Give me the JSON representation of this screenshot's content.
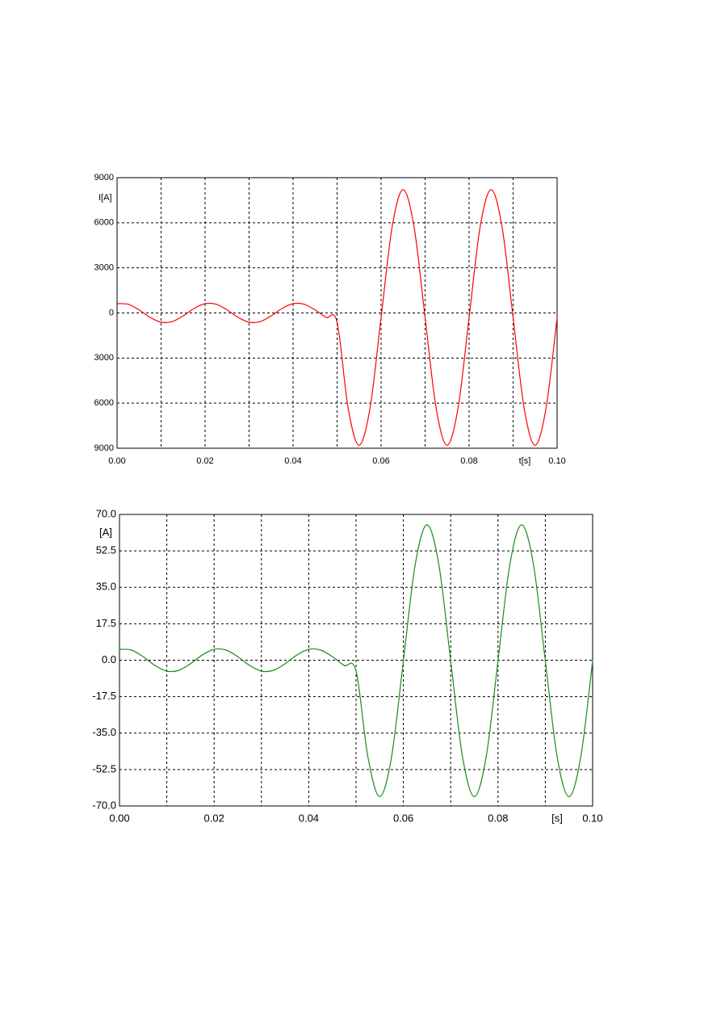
{
  "chart_data": [
    {
      "type": "line",
      "y_label": "I[A]",
      "x_label": "t[s]",
      "grid": true,
      "x": [
        0,
        0.0025,
        0.005,
        0.0075,
        0.01,
        0.0125,
        0.015,
        0.0175,
        0.02,
        0.0225,
        0.025,
        0.0275,
        0.03,
        0.0325,
        0.035,
        0.0375,
        0.04,
        0.0425,
        0.045,
        0.0475,
        0.05,
        0.0525,
        0.055,
        0.0575,
        0.06,
        0.0625,
        0.065,
        0.0675,
        0.07,
        0.0725,
        0.075,
        0.0775,
        0.08,
        0.0825,
        0.085,
        0.0875,
        0.09,
        0.0925,
        0.095,
        0.0975,
        0.1
      ],
      "series": [
        {
          "color": "#ff0000",
          "values": [
            618,
            579,
            201,
            -295,
            -618,
            -579,
            -201,
            295,
            618,
            579,
            201,
            -295,
            -618,
            -579,
            -201,
            295,
            618,
            579,
            201,
            -295,
            -618,
            -6310,
            -8800,
            -6310,
            -300,
            5710,
            8200,
            5710,
            -300,
            -6310,
            -8800,
            -6310,
            -300,
            5710,
            8200,
            5710,
            -300,
            -6310,
            -8800,
            -6310,
            -300
          ]
        }
      ],
      "xlim": [
        0,
        0.1
      ],
      "xticks": [
        {
          "value": 0,
          "label": "0.00"
        },
        {
          "value": 0.02,
          "label": "0.02"
        },
        {
          "value": 0.04,
          "label": "0.04"
        },
        {
          "value": 0.06,
          "label": "0.06"
        },
        {
          "value": 0.08,
          "label": "0.08"
        },
        {
          "value": 0.1,
          "label": "0.10"
        }
      ],
      "xminor": [
        0.01,
        0.03,
        0.05,
        0.07,
        0.09
      ],
      "ylim": [
        -9000,
        9000
      ],
      "yticks": [
        {
          "value": -9000,
          "label": "9000"
        },
        {
          "value": -6000,
          "label": "6000"
        },
        {
          "value": -3000,
          "label": "3000"
        },
        0,
        3000,
        6000,
        9000
      ]
    },
    {
      "type": "line",
      "y_label": "[A]",
      "x_label": "[s]",
      "grid": true,
      "x": [
        0,
        0.0025,
        0.005,
        0.0075,
        0.01,
        0.0125,
        0.015,
        0.0175,
        0.02,
        0.0225,
        0.025,
        0.0275,
        0.03,
        0.0325,
        0.035,
        0.0375,
        0.04,
        0.0425,
        0.045,
        0.0475,
        0.05,
        0.0525,
        0.055,
        0.0575,
        0.06,
        0.0625,
        0.065,
        0.0675,
        0.07,
        0.0725,
        0.075,
        0.0775,
        0.08,
        0.0825,
        0.085,
        0.0875,
        0.09,
        0.0925,
        0.095,
        0.0975,
        0.1
      ],
      "series": [
        {
          "color": "#1a8c1a",
          "values": [
            5.23,
            4.9,
            1.7,
            -2.5,
            -5.23,
            -4.9,
            -1.7,
            2.5,
            5.23,
            4.9,
            1.7,
            -2.5,
            -5.23,
            -4.9,
            -1.7,
            2.5,
            5.23,
            4.9,
            1.7,
            -2.5,
            -5.23,
            -46.38,
            -65.5,
            -46.38,
            -0.25,
            45.88,
            65,
            45.88,
            -0.25,
            -46.38,
            -65.5,
            -46.38,
            -0.25,
            45.88,
            65,
            45.88,
            -0.25,
            -46.38,
            -65.5,
            -46.38,
            -0.25
          ]
        }
      ],
      "xlim": [
        0,
        0.1
      ],
      "xticks": [
        {
          "value": 0,
          "label": "0.00"
        },
        {
          "value": 0.02,
          "label": "0.02"
        },
        {
          "value": 0.04,
          "label": "0.04"
        },
        {
          "value": 0.06,
          "label": "0.06"
        },
        {
          "value": 0.08,
          "label": "0.08"
        },
        {
          "value": 0.1,
          "label": "0.10"
        }
      ],
      "xminor": [
        0.01,
        0.03,
        0.05,
        0.07,
        0.09
      ],
      "ylim": [
        -70,
        70
      ],
      "yticks": [
        {
          "value": -70,
          "label": "-70.0"
        },
        {
          "value": -52.5,
          "label": "-52.5"
        },
        {
          "value": -35,
          "label": "-35.0"
        },
        {
          "value": -17.5,
          "label": "-17.5"
        },
        {
          "value": 0,
          "label": "0.0"
        },
        {
          "value": 17.5,
          "label": "17.5"
        },
        {
          "value": 35,
          "label": "35.0"
        },
        {
          "value": 52.5,
          "label": "52.5"
        },
        {
          "value": 70,
          "label": "70.0"
        }
      ]
    }
  ]
}
